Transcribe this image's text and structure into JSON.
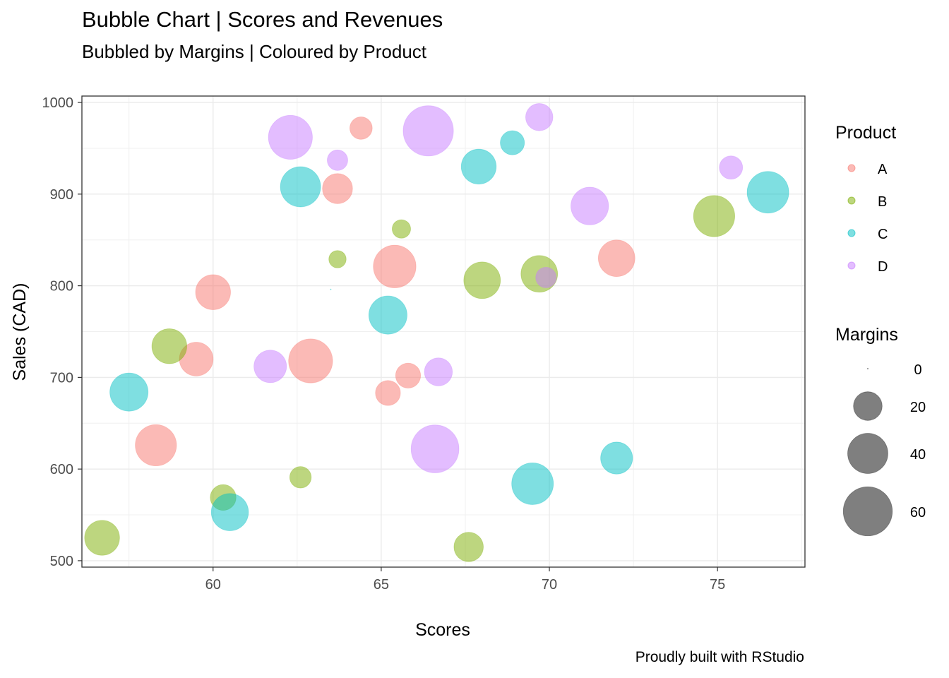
{
  "chart_data": {
    "type": "scatter",
    "title": "Bubble Chart | Scores and Revenues",
    "subtitle": "Bubbled by Margins | Coloured by Product",
    "caption": "Proudly built with RStudio",
    "xlabel": "Scores",
    "ylabel": "Sales (CAD)",
    "xlim": [
      56.1,
      77.6
    ],
    "ylim": [
      493,
      1007
    ],
    "x_ticks": [
      60,
      65,
      70,
      75
    ],
    "y_ticks": [
      500,
      600,
      700,
      800,
      900,
      1000
    ],
    "grid": true,
    "colors": {
      "A": "#F8766D",
      "B": "#7CAE00",
      "C": "#00BFC4",
      "D": "#C77CFF"
    },
    "series": [
      {
        "name": "A",
        "points": [
          {
            "x": 64.4,
            "y": 972,
            "size": 12
          },
          {
            "x": 63.7,
            "y": 906,
            "size": 22
          },
          {
            "x": 60.0,
            "y": 793,
            "size": 30
          },
          {
            "x": 65.4,
            "y": 821,
            "size": 45
          },
          {
            "x": 72.0,
            "y": 830,
            "size": 33
          },
          {
            "x": 59.5,
            "y": 720,
            "size": 28
          },
          {
            "x": 62.9,
            "y": 718,
            "size": 48
          },
          {
            "x": 65.8,
            "y": 702,
            "size": 15
          },
          {
            "x": 65.2,
            "y": 683,
            "size": 15
          },
          {
            "x": 58.3,
            "y": 626,
            "size": 42
          }
        ]
      },
      {
        "name": "B",
        "points": [
          {
            "x": 65.6,
            "y": 862,
            "size": 8
          },
          {
            "x": 63.7,
            "y": 829,
            "size": 7
          },
          {
            "x": 68.0,
            "y": 806,
            "size": 33
          },
          {
            "x": 69.7,
            "y": 813,
            "size": 33
          },
          {
            "x": 74.9,
            "y": 876,
            "size": 42
          },
          {
            "x": 58.7,
            "y": 734,
            "size": 30
          },
          {
            "x": 62.6,
            "y": 591,
            "size": 11
          },
          {
            "x": 60.3,
            "y": 569,
            "size": 16
          },
          {
            "x": 56.7,
            "y": 525,
            "size": 30
          },
          {
            "x": 67.6,
            "y": 515,
            "size": 21
          }
        ]
      },
      {
        "name": "C",
        "points": [
          {
            "x": 68.9,
            "y": 956,
            "size": 14
          },
          {
            "x": 67.9,
            "y": 930,
            "size": 30
          },
          {
            "x": 62.6,
            "y": 908,
            "size": 40
          },
          {
            "x": 76.5,
            "y": 902,
            "size": 43
          },
          {
            "x": 63.5,
            "y": 796,
            "size": 0
          },
          {
            "x": 65.2,
            "y": 768,
            "size": 36
          },
          {
            "x": 57.5,
            "y": 684,
            "size": 36
          },
          {
            "x": 72.0,
            "y": 612,
            "size": 25
          },
          {
            "x": 69.5,
            "y": 584,
            "size": 43
          },
          {
            "x": 60.5,
            "y": 553,
            "size": 34
          }
        ]
      },
      {
        "name": "D",
        "points": [
          {
            "x": 69.7,
            "y": 984,
            "size": 18
          },
          {
            "x": 62.3,
            "y": 962,
            "size": 48
          },
          {
            "x": 66.4,
            "y": 969,
            "size": 63
          },
          {
            "x": 63.7,
            "y": 937,
            "size": 10
          },
          {
            "x": 75.4,
            "y": 929,
            "size": 13
          },
          {
            "x": 71.2,
            "y": 887,
            "size": 35
          },
          {
            "x": 69.9,
            "y": 809,
            "size": 10
          },
          {
            "x": 61.7,
            "y": 712,
            "size": 26
          },
          {
            "x": 66.7,
            "y": 706,
            "size": 19
          },
          {
            "x": 66.6,
            "y": 622,
            "size": 57
          }
        ]
      }
    ],
    "legend_product": {
      "title": "Product",
      "labels": [
        "A",
        "B",
        "C",
        "D"
      ]
    },
    "legend_margins": {
      "title": "Margins",
      "values": [
        0,
        20,
        40,
        60
      ]
    }
  }
}
